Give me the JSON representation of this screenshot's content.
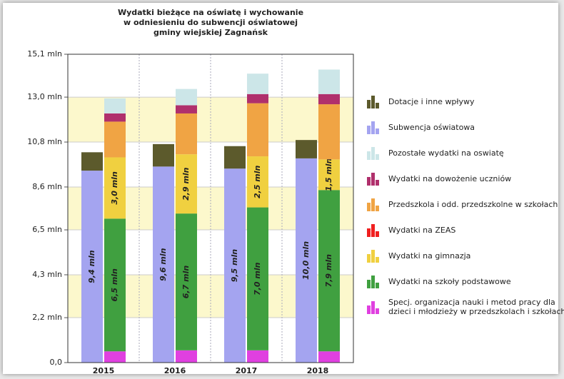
{
  "chart_data": {
    "type": "stacked_bar",
    "title": "Wydatki bieżące na oświatę i wychowanie\nw odniesieniu do subwencji oświatowej\ngminy wiejskiej Zagnańsk",
    "categories": [
      "2015",
      "2016",
      "2017",
      "2018"
    ],
    "ylim": [
      0,
      15.1
    ],
    "yticks": [
      {
        "value": 0,
        "label": "0,0"
      },
      {
        "value": 2.2,
        "label": "2,2 mln"
      },
      {
        "value": 4.3,
        "label": "4,3 mln"
      },
      {
        "value": 6.5,
        "label": "6,5 mln"
      },
      {
        "value": 8.6,
        "label": "8,6 mln"
      },
      {
        "value": 10.8,
        "label": "10,8 mln"
      },
      {
        "value": 13.0,
        "label": "13,0 mln"
      },
      {
        "value": 15.1,
        "label": "15,1 mln"
      }
    ],
    "grid": true,
    "legend": "right",
    "series": [
      {
        "name": "Dotacje i inne wpływy",
        "color": "#5c5a2c",
        "stack": 0,
        "values": [
          0.9,
          1.1,
          1.1,
          0.9
        ]
      },
      {
        "name": "Subwencja oświatowa",
        "color": "#a4a4f0",
        "stack": 0,
        "values": [
          9.4,
          9.6,
          9.5,
          10.0
        ],
        "value_labels": [
          "9,4 mln",
          "9,6 mln",
          "9,5 mln",
          "10,0 mln"
        ]
      },
      {
        "name": "Pozostałe wydatki na oswiatę",
        "color": "#cce6e8",
        "stack": 1,
        "values": [
          0.74,
          0.8,
          1.0,
          1.2
        ]
      },
      {
        "name": "Wydatki na dowożenie uczniów",
        "color": "#b0306c",
        "stack": 1,
        "values": [
          0.4,
          0.4,
          0.45,
          0.5
        ]
      },
      {
        "name": "Przedszkola i odd. przedszkolne w szkołach",
        "color": "#f0a444",
        "stack": 1,
        "values": [
          1.75,
          2.0,
          2.6,
          2.7
        ]
      },
      {
        "name": "Wydatki na ZEAS",
        "color": "#f02020",
        "stack": 1,
        "values": [
          0,
          0,
          0,
          0
        ]
      },
      {
        "name": "Wydatki na gimnazja",
        "color": "#f0d040",
        "stack": 1,
        "values": [
          3.0,
          2.9,
          2.5,
          1.5
        ],
        "value_labels": [
          "3,0 mln",
          "2,9 mln",
          "2,5 mln",
          "1,5 mln"
        ]
      },
      {
        "name": "Wydatki na szkoły podstawowe",
        "color": "#40a040",
        "stack": 1,
        "values": [
          6.5,
          6.7,
          7.0,
          7.9
        ],
        "value_labels": [
          "6,5 mln",
          "6,7 mln",
          "7,0 mln",
          "7,9 mln"
        ]
      },
      {
        "name": "Specj. organizacja nauki i metod pracy dla dzieci i młodzieży w przedszkolach i szkołach",
        "color": "#e040e0",
        "stack": 1,
        "values": [
          0.55,
          0.6,
          0.6,
          0.55
        ]
      }
    ]
  }
}
